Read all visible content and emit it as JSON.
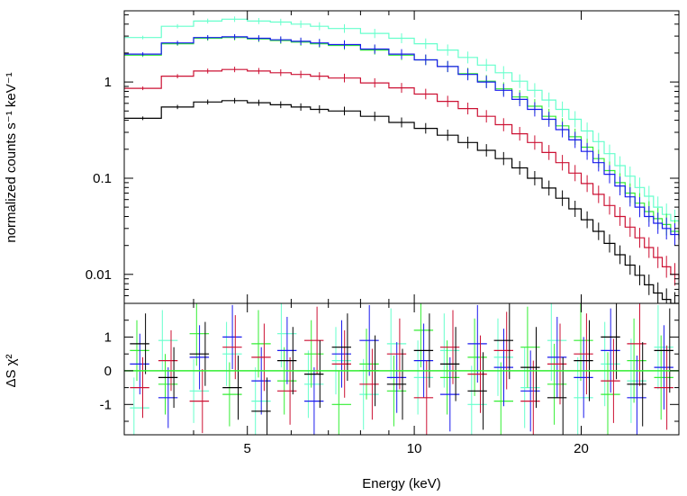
{
  "chart_data": [
    {
      "type": "line",
      "panel": "top",
      "title": "",
      "xlabel": "Energy (keV)",
      "ylabel": "normalized counts s⁻¹ keV⁻¹",
      "xscale": "log",
      "yscale": "log",
      "xlim": [
        3,
        30
      ],
      "ylim": [
        0.005,
        5.5
      ],
      "yticks": [
        {
          "value": 1,
          "label": "1"
        },
        {
          "value": 0.1,
          "label": "0.1"
        },
        {
          "value": 0.01,
          "label": "0.01"
        }
      ],
      "x": [
        3,
        3.5,
        4,
        4.5,
        5,
        5.5,
        6,
        6.5,
        7,
        8,
        9,
        10,
        11,
        12,
        13,
        14,
        15,
        16,
        17,
        18,
        19,
        20,
        21,
        22,
        23,
        24,
        25,
        26,
        27,
        28,
        29,
        30
      ],
      "series": [
        {
          "name": "cyan",
          "color": "#66ffcc",
          "values": [
            2.9,
            3.8,
            4.3,
            4.5,
            4.3,
            4.2,
            4.0,
            3.8,
            3.6,
            3.2,
            2.85,
            2.5,
            2.15,
            1.8,
            1.5,
            1.25,
            1.02,
            0.82,
            0.65,
            0.52,
            0.41,
            0.31,
            0.24,
            0.18,
            0.135,
            0.105,
            0.08,
            0.065,
            0.05,
            0.042,
            0.036,
            0.033
          ]
        },
        {
          "name": "green",
          "color": "#33ee33",
          "values": [
            1.9,
            2.5,
            2.85,
            2.9,
            2.8,
            2.7,
            2.6,
            2.5,
            2.4,
            2.15,
            1.9,
            1.7,
            1.45,
            1.22,
            1.02,
            0.85,
            0.7,
            0.56,
            0.44,
            0.35,
            0.27,
            0.21,
            0.16,
            0.12,
            0.09,
            0.07,
            0.055,
            0.045,
            0.038,
            0.033,
            0.028,
            0.025
          ]
        },
        {
          "name": "blue",
          "color": "#1a1aee",
          "values": [
            1.95,
            2.55,
            2.9,
            2.95,
            2.85,
            2.75,
            2.65,
            2.55,
            2.45,
            2.2,
            1.95,
            1.7,
            1.45,
            1.2,
            1.0,
            0.82,
            0.66,
            0.52,
            0.41,
            0.32,
            0.25,
            0.19,
            0.145,
            0.11,
            0.083,
            0.064,
            0.05,
            0.04,
            0.034,
            0.03,
            0.026,
            0.023
          ]
        },
        {
          "name": "red",
          "color": "#cc1133",
          "values": [
            0.86,
            1.15,
            1.3,
            1.35,
            1.3,
            1.25,
            1.2,
            1.15,
            1.1,
            0.98,
            0.87,
            0.75,
            0.63,
            0.53,
            0.44,
            0.36,
            0.29,
            0.235,
            0.185,
            0.145,
            0.113,
            0.088,
            0.068,
            0.052,
            0.04,
            0.031,
            0.024,
            0.019,
            0.015,
            0.012,
            0.01,
            0.009
          ]
        },
        {
          "name": "black",
          "color": "#000000",
          "values": [
            0.42,
            0.55,
            0.62,
            0.64,
            0.61,
            0.58,
            0.55,
            0.52,
            0.5,
            0.44,
            0.38,
            0.33,
            0.28,
            0.235,
            0.195,
            0.16,
            0.128,
            0.1,
            0.079,
            0.062,
            0.048,
            0.037,
            0.028,
            0.021,
            0.016,
            0.0125,
            0.0098,
            0.0078,
            0.0064,
            0.0055,
            0.0048,
            0.0044
          ]
        }
      ]
    },
    {
      "type": "scatter",
      "panel": "bottom",
      "title": "",
      "xlabel": "Energy (keV)",
      "ylabel": "ΔS χ²",
      "xscale": "log",
      "xlim": [
        3,
        30
      ],
      "ylim": [
        -1.9,
        2.0
      ],
      "xticks": [
        {
          "value": 5,
          "label": "5"
        },
        {
          "value": 10,
          "label": "10"
        },
        {
          "value": 20,
          "label": "20"
        }
      ],
      "yticks": [
        {
          "value": 1,
          "label": "1"
        },
        {
          "value": 0,
          "label": "0"
        },
        {
          "value": -1,
          "label": "-1"
        }
      ],
      "zero_line_color": "#33ee33",
      "x": [
        3.2,
        3.6,
        4.1,
        4.7,
        5.3,
        5.9,
        6.6,
        7.4,
        8.3,
        9.3,
        10.4,
        11.6,
        13.0,
        14.5,
        16.2,
        18.1,
        20.2,
        22.6,
        25.2,
        28.2
      ],
      "errors": [
        0.9,
        0.9,
        0.95,
        0.95,
        1.0,
        1.0,
        1.0,
        1.0,
        1.05,
        1.05,
        1.1,
        1.1,
        1.15,
        1.15,
        1.2,
        1.2,
        1.2,
        1.25,
        1.25,
        1.25
      ],
      "series": [
        {
          "name": "cyan",
          "color": "#66ffcc",
          "values": [
            -1.1,
            0.9,
            -0.6,
            0.5,
            -0.9,
            1.1,
            -0.4,
            0.3,
            -0.7,
            0.8,
            -0.2,
            0.6,
            -1.0,
            0.4,
            -0.5,
            0.9,
            -0.8,
            0.2,
            -0.3,
            0.7
          ]
        },
        {
          "name": "green",
          "color": "#33ee33",
          "values": [
            0.6,
            -0.4,
            1.1,
            -0.7,
            0.8,
            -0.3,
            0.5,
            -1.0,
            0.2,
            -0.6,
            1.2,
            -0.2,
            0.4,
            -0.9,
            0.7,
            -0.4,
            0.9,
            -0.7,
            0.3,
            -0.2
          ]
        },
        {
          "name": "blue",
          "color": "#1a1aee",
          "values": [
            0.2,
            -0.8,
            0.4,
            1.0,
            -0.3,
            0.6,
            -0.9,
            0.5,
            0.9,
            -0.2,
            0.3,
            -0.7,
            0.8,
            0.1,
            -0.6,
            0.4,
            -0.2,
            0.6,
            -0.8,
            0.1
          ]
        },
        {
          "name": "red",
          "color": "#cc1133",
          "values": [
            -0.5,
            0.3,
            -0.9,
            0.7,
            0.4,
            -0.6,
            0.9,
            0.2,
            -0.4,
            0.5,
            -0.8,
            0.7,
            -0.1,
            0.6,
            -0.9,
            0.2,
            0.5,
            -0.3,
            0.8,
            -0.5
          ]
        },
        {
          "name": "black",
          "color": "#000000",
          "values": [
            0.8,
            -0.2,
            0.5,
            -0.5,
            -1.2,
            0.3,
            -0.1,
            0.7,
            0.0,
            -0.4,
            0.6,
            0.2,
            -0.6,
            0.9,
            0.1,
            -0.8,
            0.3,
            1.0,
            -0.4,
            0.6
          ]
        }
      ]
    }
  ]
}
